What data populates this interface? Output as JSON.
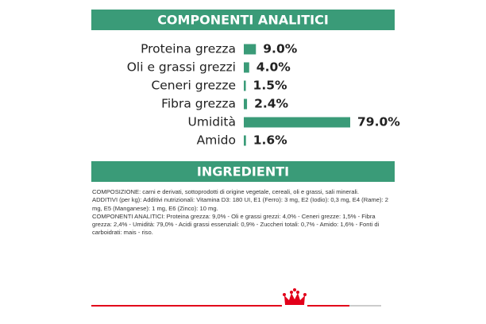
{
  "chart_data": {
    "type": "bar",
    "title": "COMPONENTI ANALITICI",
    "categories": [
      "Proteina grezza",
      "Oli e grassi grezzi",
      "Ceneri grezze",
      "Fibra grezza",
      "Umidità",
      "Amido"
    ],
    "values": [
      9.0,
      4.0,
      1.5,
      2.4,
      79.0,
      1.6
    ],
    "value_labels": [
      "9.0%",
      "4.0%",
      "1.5%",
      "2.4%",
      "79.0%",
      "1.6%"
    ],
    "color": "#3a9b78"
  },
  "ingredients": {
    "title": "INGREDIENTI",
    "paragraphs": [
      "COMPOSIZIONE: carni e derivati, sottoprodotti di origine vegetale, cereali, oli e grassi, sali minerali.",
      "ADDITIVI (per kg): Additivi nutrizionali: Vitamina D3: 180 UI, E1 (Ferro): 3 mg, E2 (Iodio): 0,3 mg, E4 (Rame): 2 mg, E5 (Manganese): 1 mg, E6 (Zinco): 10 mg.",
      "COMPONENTI ANALITICI: Proteina grezza: 9,0% - Oli e grassi grezzi: 4,0% - Ceneri grezze: 1,5% - Fibra grezza: 2,4% - Umidità: 79,0% - Acidi grassi essenziali: 0,9% - Zuccheri totali: 0,7% - Amido: 1,6% - Fonti di carboidrati: mais - riso."
    ]
  }
}
